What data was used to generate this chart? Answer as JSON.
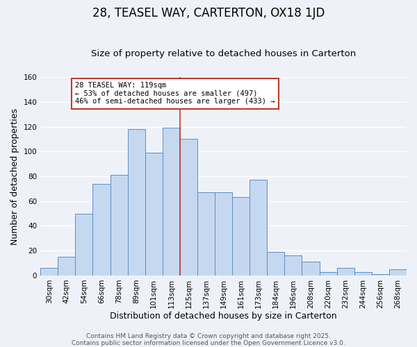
{
  "title": "28, TEASEL WAY, CARTERTON, OX18 1JD",
  "subtitle": "Size of property relative to detached houses in Carterton",
  "xlabel": "Distribution of detached houses by size in Carterton",
  "ylabel": "Number of detached properties",
  "bar_labels": [
    "30sqm",
    "42sqm",
    "54sqm",
    "66sqm",
    "78sqm",
    "89sqm",
    "101sqm",
    "113sqm",
    "125sqm",
    "137sqm",
    "149sqm",
    "161sqm",
    "173sqm",
    "184sqm",
    "196sqm",
    "208sqm",
    "220sqm",
    "232sqm",
    "244sqm",
    "256sqm",
    "268sqm"
  ],
  "bar_values": [
    6,
    15,
    50,
    74,
    81,
    118,
    99,
    119,
    110,
    67,
    67,
    63,
    77,
    19,
    16,
    11,
    3,
    6,
    3,
    1,
    5
  ],
  "bar_color": "#c5d8f0",
  "bar_edge_color": "#5b8ec4",
  "bar_width": 1.0,
  "ylim": [
    0,
    160
  ],
  "yticks": [
    0,
    20,
    40,
    60,
    80,
    100,
    120,
    140,
    160
  ],
  "vline_x": 7.5,
  "vline_color": "#c0392b",
  "annotation_title": "28 TEASEL WAY: 119sqm",
  "annotation_line1": "← 53% of detached houses are smaller (497)",
  "annotation_line2": "46% of semi-detached houses are larger (433) →",
  "annotation_box_color": "#ffffff",
  "annotation_box_edge": "#c0392b",
  "background_color": "#eef2f8",
  "grid_color": "#ffffff",
  "footer1": "Contains HM Land Registry data © Crown copyright and database right 2025.",
  "footer2": "Contains public sector information licensed under the Open Government Licence v3.0.",
  "title_fontsize": 12,
  "subtitle_fontsize": 9.5,
  "xlabel_fontsize": 9,
  "ylabel_fontsize": 9,
  "tick_fontsize": 7.5,
  "footer_fontsize": 6.5,
  "annot_fontsize": 7.5
}
